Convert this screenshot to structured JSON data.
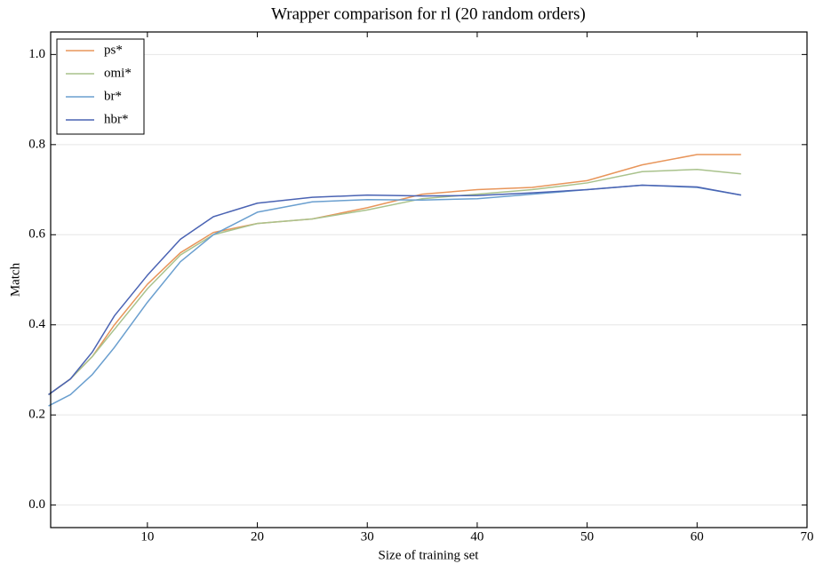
{
  "chart_data": {
    "type": "line",
    "title": "Wrapper comparison for rl (20 random orders)",
    "x_label": "Size of training set",
    "y_label": "Match",
    "x": [
      1,
      3,
      5,
      7,
      10,
      13,
      16,
      20,
      25,
      30,
      35,
      40,
      45,
      50,
      55,
      60,
      64
    ],
    "series": [
      {
        "name": "ps*",
        "color": "#e8955a",
        "values": [
          0.245,
          0.28,
          0.33,
          0.4,
          0.49,
          0.56,
          0.605,
          0.625,
          0.635,
          0.66,
          0.69,
          0.7,
          0.705,
          0.72,
          0.755,
          0.778,
          0.778
        ]
      },
      {
        "name": "omi*",
        "color": "#a9c28c",
        "values": [
          0.245,
          0.28,
          0.33,
          0.39,
          0.48,
          0.555,
          0.6,
          0.625,
          0.635,
          0.655,
          0.68,
          0.69,
          0.7,
          0.715,
          0.74,
          0.745,
          0.735
        ]
      },
      {
        "name": "br*",
        "color": "#6a9fcf",
        "values": [
          0.22,
          0.245,
          0.29,
          0.35,
          0.45,
          0.54,
          0.6,
          0.65,
          0.673,
          0.678,
          0.677,
          0.68,
          0.69,
          0.7,
          0.71,
          0.705,
          0.688
        ]
      },
      {
        "name": "hbr*",
        "color": "#4a63b3",
        "values": [
          0.245,
          0.28,
          0.34,
          0.42,
          0.51,
          0.59,
          0.64,
          0.67,
          0.683,
          0.688,
          0.686,
          0.687,
          0.693,
          0.7,
          0.71,
          0.706,
          0.688
        ]
      }
    ],
    "xlim": [
      1.2,
      70
    ],
    "ylim": [
      -0.05,
      1.05
    ],
    "xticks": [
      10,
      20,
      30,
      40,
      50,
      60,
      70
    ],
    "yticks": [
      {
        "value": 0,
        "label": "0.0"
      },
      0.2,
      0.4,
      0.6,
      0.8,
      {
        "value": 1,
        "label": "1.0"
      }
    ],
    "grid": true,
    "legend": "upper left"
  }
}
